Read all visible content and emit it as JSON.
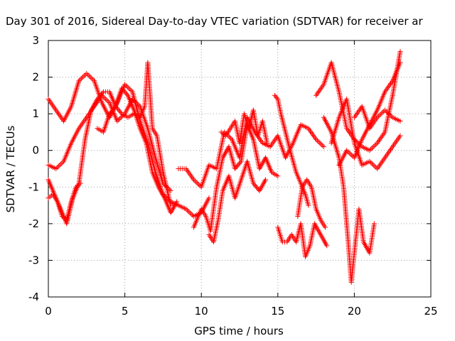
{
  "chart_data": {
    "type": "scatter",
    "title": "Day 301 of 2016, Sidereal Day-to-day VTEC variation (SDTVAR) for receiver ar",
    "xlabel": "GPS time / hours",
    "ylabel": "SDTVAR / TECUs",
    "xlim": [
      0,
      25
    ],
    "ylim": [
      -4,
      3
    ],
    "x_ticks": [
      0,
      5,
      10,
      15,
      20,
      25
    ],
    "y_ticks": [
      -4,
      -3,
      -2,
      -1,
      0,
      1,
      2,
      3
    ],
    "x_tick_labels": [
      "0",
      "5",
      "10",
      "15",
      "20",
      "25"
    ],
    "y_tick_labels": [
      "-4",
      "-3",
      "-2",
      "-1",
      "0",
      "1",
      "2",
      "3"
    ],
    "grid": true,
    "marker": "+",
    "marker_color": "#ff0000",
    "series": [
      {
        "x": [
          0,
          0.5,
          1.0,
          1.5,
          2.0,
          2.5,
          3.0,
          3.5,
          4.0,
          4.5,
          5.0,
          5.5,
          6.0,
          6.5,
          7.0,
          7.5,
          8.0,
          8.5,
          9.0,
          9.5,
          10.0,
          10.5
        ],
        "y": [
          1.4,
          1.1,
          0.8,
          1.2,
          1.9,
          2.1,
          1.9,
          1.3,
          0.9,
          1.3,
          1.8,
          1.6,
          0.8,
          0.2,
          -0.6,
          -1.2,
          -1.4,
          -1.5,
          -1.6,
          -1.8,
          -1.7,
          -1.3
        ]
      },
      {
        "x": [
          0,
          0.5,
          1.0,
          1.5,
          2.0,
          2.5,
          3.0,
          3.5,
          4.0,
          4.5,
          5.0,
          5.5,
          6.0,
          6.5,
          7.0,
          7.5,
          8.0
        ],
        "y": [
          -0.4,
          -0.5,
          -0.3,
          0.2,
          0.6,
          0.9,
          1.2,
          1.5,
          1.3,
          0.8,
          1.0,
          1.4,
          1.2,
          0.6,
          -0.2,
          -0.9,
          -1.1
        ]
      },
      {
        "x": [
          0,
          0.4,
          0.8,
          1.2,
          1.6,
          2.0,
          2.4,
          2.8,
          3.2,
          3.6,
          4.0,
          4.4,
          4.8,
          5.2,
          5.6,
          6.0,
          6.4,
          6.8,
          7.2,
          7.6,
          8.0,
          8.4
        ],
        "y": [
          -0.8,
          -1.2,
          -1.6,
          -2.0,
          -1.3,
          -0.9,
          0.3,
          1.1,
          1.4,
          1.6,
          1.6,
          1.2,
          1.7,
          1.5,
          1.1,
          0.6,
          0.2,
          -0.6,
          -1.0,
          -1.3,
          -1.7,
          -1.4
        ]
      },
      {
        "x": [
          0,
          0.3,
          0.6,
          0.9,
          1.2,
          1.5,
          1.8,
          2.1
        ],
        "y": [
          -1.3,
          -1.2,
          -1.4,
          -1.8,
          -1.9,
          -1.4,
          -1.0,
          -0.9
        ]
      },
      {
        "x": [
          3.2,
          3.6,
          4.0,
          4.4,
          4.8,
          5.2,
          5.6,
          6.0,
          6.3,
          6.5,
          6.8,
          7.1,
          7.5,
          8.0
        ],
        "y": [
          0.6,
          0.5,
          1.0,
          1.2,
          1.0,
          0.9,
          1.0,
          0.9,
          1.2,
          2.4,
          0.6,
          0.4,
          -0.6,
          -1.5
        ]
      },
      {
        "x": [
          8.5,
          9.0,
          9.5,
          10.0,
          10.5,
          11.0,
          11.5,
          12.0,
          12.5,
          13.0,
          13.5,
          14.0,
          14.5,
          15.0,
          15.5,
          16.0,
          16.5,
          17.0,
          17.5,
          18.0
        ],
        "y": [
          -0.5,
          -0.5,
          -0.8,
          -1.0,
          -0.4,
          -0.5,
          0.5,
          0.3,
          -0.2,
          0.9,
          0.5,
          0.2,
          0.1,
          0.4,
          -0.2,
          0.2,
          0.7,
          0.6,
          0.3,
          0.1
        ]
      },
      {
        "x": [
          9.5,
          10.0,
          10.3,
          10.6,
          11.0,
          11.4,
          11.8,
          12.2,
          12.6,
          13.0,
          13.4,
          13.8,
          14.2,
          14.6,
          15.0
        ],
        "y": [
          -2.1,
          -1.6,
          -1.8,
          -2.2,
          -1.0,
          -0.2,
          0.1,
          -0.5,
          -0.3,
          0.7,
          0.3,
          -0.5,
          -0.2,
          -0.6,
          -0.7
        ]
      },
      {
        "x": [
          10.5,
          10.8,
          11.1,
          11.4,
          11.8,
          12.2,
          12.6,
          13.0,
          13.4,
          13.8,
          14.2
        ],
        "y": [
          -2.3,
          -2.5,
          -1.9,
          -1.1,
          -0.7,
          -1.3,
          -0.8,
          -0.3,
          -0.9,
          -1.1,
          -0.8
        ]
      },
      {
        "x": [
          11.3,
          11.6,
          11.9,
          12.2,
          12.5,
          12.8,
          13.1,
          13.4,
          13.7,
          14.0,
          14.3
        ],
        "y": [
          0.5,
          0.4,
          0.6,
          0.8,
          0.2,
          1.0,
          0.6,
          1.1,
          0.4,
          0.8,
          0.2
        ]
      },
      {
        "x": [
          14.8,
          15.0,
          15.2,
          15.5,
          15.8,
          16.0,
          16.2,
          16.5,
          16.8,
          17.0
        ],
        "y": [
          1.5,
          1.4,
          1.0,
          0.5,
          0.0,
          -0.3,
          -0.6,
          -0.9,
          -1.2,
          -1.5
        ]
      },
      {
        "x": [
          15.0,
          15.3,
          15.6,
          15.9,
          16.2,
          16.5,
          16.8,
          17.1,
          17.4,
          17.8,
          18.2
        ],
        "y": [
          -2.1,
          -2.5,
          -2.5,
          -2.3,
          -2.5,
          -2.0,
          -2.9,
          -2.6,
          -2.0,
          -2.3,
          -2.6
        ]
      },
      {
        "x": [
          16.3,
          16.6,
          16.9,
          17.2,
          17.5,
          17.8,
          18.1
        ],
        "y": [
          -1.8,
          -1.0,
          -0.8,
          -1.0,
          -1.6,
          -1.9,
          -2.1
        ]
      },
      {
        "x": [
          17.5,
          18.0,
          18.5,
          19.0,
          19.5,
          20.0,
          20.5,
          21.0,
          21.5,
          22.0,
          22.5,
          23.0
        ],
        "y": [
          1.5,
          1.8,
          2.4,
          1.6,
          0.6,
          0.3,
          0.1,
          0.0,
          0.2,
          0.5,
          1.5,
          2.7
        ]
      },
      {
        "x": [
          18.0,
          18.5,
          19.0,
          19.3,
          19.6,
          19.8,
          20.0,
          20.3,
          20.6,
          21.0,
          21.3
        ],
        "y": [
          0.9,
          0.5,
          -0.2,
          -1.0,
          -2.5,
          -3.6,
          -2.8,
          -1.6,
          -2.5,
          -2.8,
          -2.0
        ]
      },
      {
        "x": [
          18.5,
          19.0,
          19.5,
          20.0,
          20.5,
          21.0,
          21.5,
          22.0,
          22.5,
          23.0
        ],
        "y": [
          0.2,
          0.9,
          1.4,
          0.2,
          -0.4,
          -0.3,
          -0.5,
          -0.2,
          0.1,
          0.4
        ]
      },
      {
        "x": [
          19.0,
          19.5,
          20.0,
          20.5,
          21.0,
          21.5,
          22.0,
          22.5,
          23.0
        ],
        "y": [
          -0.4,
          0.0,
          -0.2,
          0.3,
          0.7,
          1.1,
          1.6,
          1.9,
          2.4
        ]
      },
      {
        "x": [
          20.0,
          20.5,
          21.0,
          21.5,
          22.0,
          22.5,
          23.0
        ],
        "y": [
          0.9,
          1.2,
          0.6,
          0.9,
          1.1,
          0.9,
          0.8
        ]
      }
    ]
  }
}
